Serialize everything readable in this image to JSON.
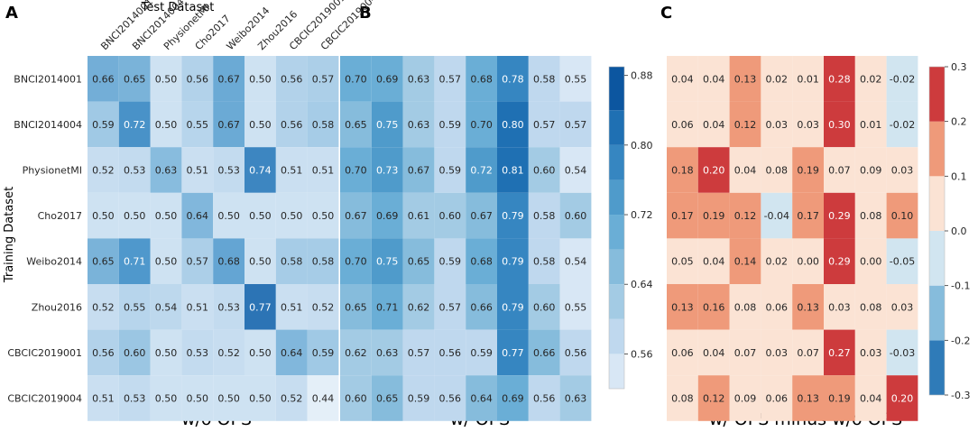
{
  "chart_data": [
    {
      "type": "heatmap",
      "panel_label": "A",
      "title": "w/o OPS",
      "xlabel": "Test Dataset",
      "ylabel": "Training Dataset",
      "x_categories": [
        "BNCI2014001",
        "BNCI2014004",
        "PhysionetMI",
        "Cho2017",
        "Weibo2014",
        "Zhou2016",
        "CBCIC2019001",
        "CBCIC2019004"
      ],
      "y_categories": [
        "BNCI2014001",
        "BNCI2014004",
        "PhysionetMI",
        "Cho2017",
        "Weibo2014",
        "Zhou2016",
        "CBCIC2019001",
        "CBCIC2019004"
      ],
      "values": [
        [
          "0.66",
          "0.65",
          "0.50",
          "0.56",
          "0.67",
          "0.50",
          "0.56",
          "0.57"
        ],
        [
          "0.59",
          "0.72",
          "0.50",
          "0.55",
          "0.67",
          "0.50",
          "0.56",
          "0.58"
        ],
        [
          "0.52",
          "0.53",
          "0.63",
          "0.51",
          "0.53",
          "0.74",
          "0.51",
          "0.51"
        ],
        [
          "0.50",
          "0.50",
          "0.50",
          "0.64",
          "0.50",
          "0.50",
          "0.50",
          "0.50"
        ],
        [
          "0.65",
          "0.71",
          "0.50",
          "0.57",
          "0.68",
          "0.50",
          "0.58",
          "0.58"
        ],
        [
          "0.52",
          "0.55",
          "0.54",
          "0.51",
          "0.53",
          "0.77",
          "0.51",
          "0.52"
        ],
        [
          "0.56",
          "0.60",
          "0.50",
          "0.53",
          "0.52",
          "0.50",
          "0.64",
          "0.59"
        ],
        [
          "0.51",
          "0.53",
          "0.50",
          "0.50",
          "0.50",
          "0.50",
          "0.52",
          "0.44"
        ]
      ]
    },
    {
      "type": "heatmap",
      "panel_label": "B",
      "title": "w/ OPS",
      "values": [
        [
          "0.70",
          "0.69",
          "0.63",
          "0.57",
          "0.68",
          "0.78",
          "0.58",
          "0.55"
        ],
        [
          "0.65",
          "0.75",
          "0.63",
          "0.59",
          "0.70",
          "0.80",
          "0.57",
          "0.57"
        ],
        [
          "0.70",
          "0.73",
          "0.67",
          "0.59",
          "0.72",
          "0.81",
          "0.60",
          "0.54"
        ],
        [
          "0.67",
          "0.69",
          "0.61",
          "0.60",
          "0.67",
          "0.79",
          "0.58",
          "0.60"
        ],
        [
          "0.70",
          "0.75",
          "0.65",
          "0.59",
          "0.68",
          "0.79",
          "0.58",
          "0.54"
        ],
        [
          "0.65",
          "0.71",
          "0.62",
          "0.57",
          "0.66",
          "0.79",
          "0.60",
          "0.55"
        ],
        [
          "0.62",
          "0.63",
          "0.57",
          "0.56",
          "0.59",
          "0.77",
          "0.66",
          "0.56"
        ],
        [
          "0.60",
          "0.65",
          "0.59",
          "0.56",
          "0.64",
          "0.69",
          "0.56",
          "0.63"
        ]
      ],
      "colorbar": {
        "ticks": [
          "0.88",
          "0.80",
          "0.72",
          "0.64",
          "0.56"
        ],
        "range": [
          0.52,
          0.89
        ],
        "boundaries": [
          0.52,
          0.56,
          0.6,
          0.64,
          0.68,
          0.72,
          0.76,
          0.8,
          0.84,
          0.89
        ],
        "colors": [
          "#d8e7f5",
          "#bfd8ee",
          "#a3cbe4",
          "#86bcdc",
          "#6aaed6",
          "#4f9bcb",
          "#3686c1",
          "#1f70b3",
          "#0c56a0"
        ]
      }
    },
    {
      "type": "heatmap",
      "panel_label": "C",
      "title": "w/ OPS minus w/o OPS",
      "values": [
        [
          "0.04",
          "0.04",
          "0.13",
          "0.02",
          "0.01",
          "0.28",
          "0.02",
          "-0.02"
        ],
        [
          "0.06",
          "0.04",
          "0.12",
          "0.03",
          "0.03",
          "0.30",
          "0.01",
          "-0.02"
        ],
        [
          "0.18",
          "0.20",
          "0.04",
          "0.08",
          "0.19",
          "0.07",
          "0.09",
          "0.03"
        ],
        [
          "0.17",
          "0.19",
          "0.12",
          "-0.04",
          "0.17",
          "0.29",
          "0.08",
          "0.10"
        ],
        [
          "0.05",
          "0.04",
          "0.14",
          "0.02",
          "0.00",
          "0.29",
          "0.00",
          "-0.05"
        ],
        [
          "0.13",
          "0.16",
          "0.08",
          "0.06",
          "0.13",
          "0.03",
          "0.08",
          "0.03"
        ],
        [
          "0.06",
          "0.04",
          "0.07",
          "0.03",
          "0.07",
          "0.27",
          "0.03",
          "-0.03"
        ],
        [
          "0.08",
          "0.12",
          "0.09",
          "0.06",
          "0.13",
          "0.19",
          "0.04",
          "0.20"
        ]
      ],
      "colorbar": {
        "ticks": [
          "0.3",
          "0.2",
          "0.1",
          "0.0",
          "-0.1",
          "-0.2",
          "-0.3"
        ],
        "range": [
          -0.3,
          0.3
        ],
        "boundaries": [
          -0.3,
          -0.2,
          -0.1,
          0.0,
          0.1,
          0.2,
          0.3
        ],
        "colors": [
          "#2f7bb8",
          "#86bcdc",
          "#d1e5f0",
          "#fbe3d4",
          "#ef9a7a",
          "#cd3b3d"
        ]
      }
    }
  ]
}
